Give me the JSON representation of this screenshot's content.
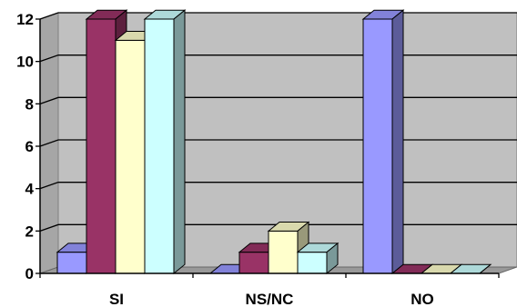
{
  "chart_data": {
    "type": "bar",
    "style": "3d-clustered-column",
    "categories": [
      "SI",
      "NS/NC",
      "NO"
    ],
    "series": [
      {
        "values": [
          1,
          0,
          12
        ],
        "color": "#9999FF"
      },
      {
        "values": [
          12,
          1,
          0
        ],
        "color": "#993366"
      },
      {
        "values": [
          11,
          2,
          0
        ],
        "color": "#FFFFCC"
      },
      {
        "values": [
          12,
          1,
          0
        ],
        "color": "#CCFFFF"
      }
    ],
    "ylim": [
      0,
      12
    ],
    "yticks": [
      0,
      2,
      4,
      6,
      8,
      10,
      12
    ],
    "grid": true,
    "legend": "none",
    "title": "",
    "xlabel": "",
    "ylabel": "",
    "colors": {
      "plot_wall": "#C0C0C0",
      "floor": "#999999",
      "gridline": "#000000"
    }
  }
}
